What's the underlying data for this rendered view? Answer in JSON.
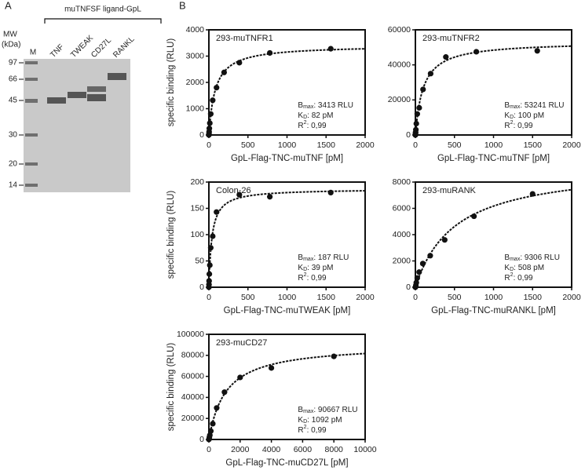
{
  "panel_labels": [
    "A",
    "B"
  ],
  "gel": {
    "header": "muTNFSF ligand-GpL",
    "mw_label": [
      "MW",
      "(kDa)"
    ],
    "marker": "M",
    "ladder": [
      "97",
      "66",
      "45",
      "30",
      "20",
      "14"
    ],
    "lanes": [
      "TNF",
      "TWEAK",
      "CD27L",
      "RANKL"
    ]
  },
  "chart_data": [
    {
      "type": "scatter",
      "title": "293-muTNFR1",
      "x_label": "GpL-Flag-TNC-muTNF [pM]",
      "y_label": "specific binding (RLU)",
      "x": [
        0,
        1.5,
        3,
        6,
        12,
        24,
        49,
        98,
        195,
        390,
        780,
        1560
      ],
      "values": [
        0,
        50,
        120,
        250,
        450,
        800,
        1320,
        1800,
        2380,
        2750,
        3120,
        3280
      ],
      "xlim": [
        0,
        2000
      ],
      "xticks": [
        0,
        500,
        1000,
        1500,
        2000
      ],
      "ylim": [
        0,
        4000
      ],
      "yticks": [
        0,
        1000,
        2000,
        3000,
        4000
      ],
      "color": "#111111",
      "fit": {
        "bmax_symbol": "B",
        "bmax_sub": "max",
        "bmax": {
          "value": 3413,
          "label": ": 3413 RLU"
        },
        "kd_symbol": "K",
        "kd_sub": "D",
        "kd": {
          "value": 82,
          "label": ": 82 pM"
        },
        "r2_symbol": "R",
        "r2_sup": "2",
        "r2": ": 0,99"
      }
    },
    {
      "type": "scatter",
      "title": "293-muTNFR2",
      "x_label": "GpL-Flag-TNC-muTNF [pM]",
      "x": [
        0,
        1.5,
        3,
        6,
        12,
        24,
        49,
        98,
        195,
        390,
        780,
        1560
      ],
      "values": [
        0,
        800,
        1500,
        3000,
        6500,
        12000,
        15500,
        26000,
        35000,
        44500,
        47500,
        48000
      ],
      "xlim": [
        0,
        2000
      ],
      "xticks": [
        0,
        500,
        1000,
        1500,
        2000
      ],
      "ylim": [
        0,
        60000
      ],
      "yticks": [
        0,
        20000,
        40000,
        60000
      ],
      "color": "#111111",
      "fit": {
        "bmax_symbol": "B",
        "bmax_sub": "max",
        "bmax": {
          "value": 53241,
          "label": ": 53241 RLU"
        },
        "kd_symbol": "K",
        "kd_sub": "D",
        "kd": {
          "value": 100,
          "label": ": 100 pM"
        },
        "r2_symbol": "R",
        "r2_sup": "2",
        "r2": ": 0,99"
      }
    },
    {
      "type": "scatter",
      "title": "Colon-26",
      "x_label": "GpL-Flag-TNC-muTWEAK [pM]",
      "y_label": "specific binding (RLU)",
      "x": [
        0,
        1.5,
        3,
        6,
        12,
        24,
        49,
        98,
        390,
        780,
        1560
      ],
      "values": [
        0,
        5,
        12,
        25,
        42,
        75,
        97,
        143,
        176,
        172,
        180
      ],
      "xlim": [
        0,
        2000
      ],
      "xticks": [
        0,
        500,
        1000,
        1500,
        2000
      ],
      "ylim": [
        0,
        200
      ],
      "yticks": [
        0,
        50,
        100,
        150,
        200
      ],
      "color": "#111111",
      "fit": {
        "bmax_symbol": "B",
        "bmax_sub": "max",
        "bmax": {
          "value": 187,
          "label": ": 187 RLU"
        },
        "kd_symbol": "K",
        "kd_sub": "D",
        "kd": {
          "value": 39,
          "label": ": 39 pM"
        },
        "r2_symbol": "R",
        "r2_sup": "2",
        "r2": ": 0,99"
      }
    },
    {
      "type": "scatter",
      "title": "293-muRANK",
      "x_label": "GpL-Flag-TNC-muRANKL [pM]",
      "x": [
        0,
        6,
        12,
        24,
        48,
        95,
        190,
        375,
        750,
        1500
      ],
      "values": [
        0,
        150,
        350,
        700,
        1150,
        1800,
        2400,
        3600,
        5400,
        7100
      ],
      "xlim": [
        0,
        2000
      ],
      "xticks": [
        0,
        500,
        1000,
        1500,
        2000
      ],
      "ylim": [
        0,
        8000
      ],
      "yticks": [
        0,
        2000,
        4000,
        6000,
        8000
      ],
      "color": "#111111",
      "fit": {
        "bmax_symbol": "B",
        "bmax_sub": "max",
        "bmax": {
          "value": 9306,
          "label": ": 9306 RLU"
        },
        "kd_symbol": "K",
        "kd_sub": "D",
        "kd": {
          "value": 508,
          "label": ": 508 pM"
        },
        "r2_symbol": "R",
        "r2_sup": "2",
        "r2": ": 0,99"
      }
    },
    {
      "type": "scatter",
      "title": "293-muCD27",
      "x_label": "GpL-Flag-TNC-muCD27L [pM]",
      "y_label": "specific binding (RLU)",
      "x": [
        0,
        31,
        62,
        125,
        250,
        500,
        1000,
        2000,
        4000,
        8000
      ],
      "values": [
        0,
        2000,
        4000,
        8000,
        15000,
        30000,
        45000,
        59000,
        68000,
        79000
      ],
      "xlim": [
        0,
        10000
      ],
      "xticks": [
        0,
        2000,
        4000,
        6000,
        8000,
        10000
      ],
      "ylim": [
        0,
        100000
      ],
      "yticks": [
        0,
        20000,
        40000,
        60000,
        80000,
        100000
      ],
      "color": "#111111",
      "fit": {
        "bmax_symbol": "B",
        "bmax_sub": "max",
        "bmax": {
          "value": 90667,
          "label": ": 90667 RLU"
        },
        "kd_symbol": "K",
        "kd_sub": "D",
        "kd": {
          "value": 1092,
          "label": ": 1092 pM"
        },
        "r2_symbol": "R",
        "r2_sup": "2",
        "r2": ": 0,99"
      }
    }
  ]
}
